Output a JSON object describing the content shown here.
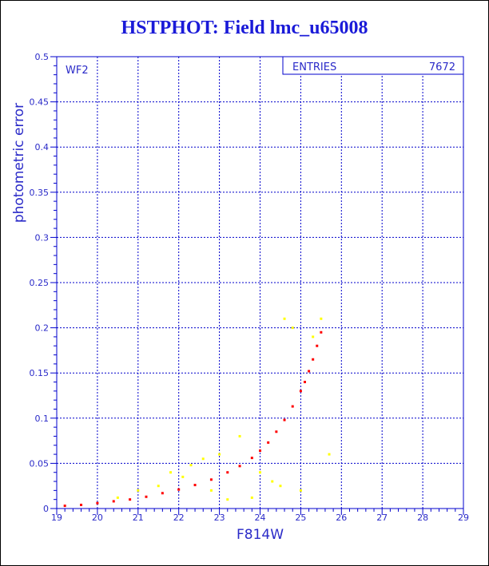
{
  "title": "HSTPHOT: Field lmc_u65008",
  "colors": {
    "text": "#1a1ad8",
    "axis": "#0000cc",
    "grid": "#0000cc",
    "primary": "#ff0000",
    "secondary": "#ffff00"
  },
  "chart_data": {
    "type": "scatter",
    "title": "HSTPHOT: Field lmc_u65008",
    "xlabel": "F814W",
    "ylabel": "photometric error",
    "xlim": [
      19,
      29
    ],
    "ylim": [
      0,
      0.5
    ],
    "xticks": [
      19,
      20,
      21,
      22,
      23,
      24,
      25,
      26,
      27,
      28,
      29
    ],
    "yticks": [
      0,
      0.05,
      0.1,
      0.15,
      0.2,
      0.25,
      0.3,
      0.35,
      0.4,
      0.45,
      0.5
    ],
    "grid": true,
    "panel_label": "WF2",
    "stats": {
      "label": "ENTRIES",
      "value": "7672"
    },
    "series": [
      {
        "color": "#ff0000",
        "description": "main error-magnitude sequence",
        "x": [
          19.2,
          19.6,
          20.0,
          20.4,
          20.8,
          21.2,
          21.6,
          22.0,
          22.4,
          22.8,
          23.2,
          23.5,
          23.8,
          24.0,
          24.2,
          24.4,
          24.6,
          24.8,
          25.0,
          25.1,
          25.2,
          25.3,
          25.4,
          25.5
        ],
        "y": [
          0.003,
          0.004,
          0.006,
          0.008,
          0.01,
          0.013,
          0.017,
          0.021,
          0.026,
          0.032,
          0.04,
          0.047,
          0.056,
          0.064,
          0.073,
          0.085,
          0.098,
          0.113,
          0.13,
          0.14,
          0.152,
          0.165,
          0.18,
          0.195
        ]
      },
      {
        "color": "#ffff00",
        "description": "scattered outliers",
        "x": [
          20.5,
          21.0,
          21.5,
          21.8,
          22.1,
          22.3,
          22.6,
          22.8,
          23.0,
          23.2,
          23.5,
          23.8,
          24.0,
          24.3,
          24.5,
          24.6,
          24.8,
          25.0,
          25.3,
          25.5,
          25.7
        ],
        "y": [
          0.012,
          0.02,
          0.025,
          0.04,
          0.035,
          0.048,
          0.055,
          0.02,
          0.06,
          0.01,
          0.08,
          0.012,
          0.04,
          0.03,
          0.025,
          0.21,
          0.2,
          0.02,
          0.19,
          0.21,
          0.06
        ]
      }
    ]
  }
}
